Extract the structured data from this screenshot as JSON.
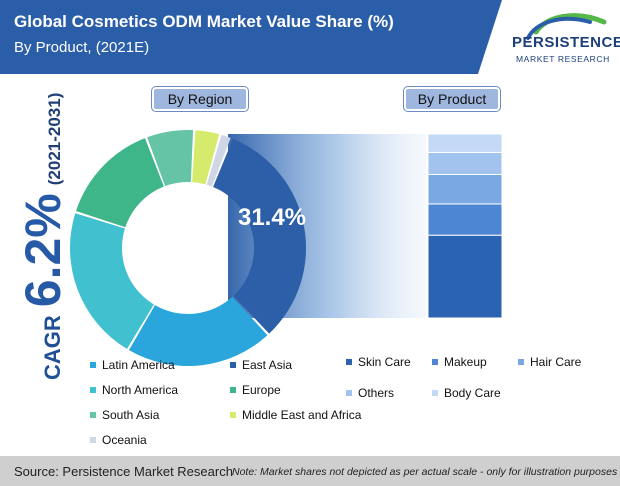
{
  "header": {
    "title": "Global Cosmetics ODM Market Value Share (%)",
    "subtitle": "By Product, (2021E)"
  },
  "logo": {
    "name": "PERSISTENCE",
    "tagline": "MARKET RESEARCH"
  },
  "labels": {
    "region": "By Region",
    "product": "By Product"
  },
  "cagr": {
    "label": "CAGR",
    "value": "6.2%",
    "period": "(2021-2031)"
  },
  "chart_data": [
    {
      "type": "pie",
      "subtype": "donut",
      "title": "By Region",
      "highlight_label": "31.4%",
      "series": [
        {
          "name": "East Asia",
          "value": 31.4,
          "color": "#2c5fa8"
        },
        {
          "name": "Latin America",
          "value": 20.0,
          "color": "#2aa6dd"
        },
        {
          "name": "North America",
          "value": 21.0,
          "color": "#41c0cf"
        },
        {
          "name": "Europe",
          "value": 14.0,
          "color": "#3fb58a"
        },
        {
          "name": "South Asia",
          "value": 6.5,
          "color": "#66c4a6"
        },
        {
          "name": "Middle East and Africa",
          "value": 3.5,
          "color": "#d6ea6c"
        },
        {
          "name": "Oceania",
          "value": 1.6,
          "color": "#cfd7e6"
        }
      ]
    },
    {
      "type": "bar",
      "subtype": "stacked",
      "title": "By Product",
      "series": [
        {
          "name": "Skin Care",
          "value": 45,
          "color": "#2b63b3"
        },
        {
          "name": "Makeup",
          "value": 17,
          "color": "#4d86d2"
        },
        {
          "name": "Hair Care",
          "value": 16,
          "color": "#7aa8e3"
        },
        {
          "name": "Others",
          "value": 12,
          "color": "#a3c3ef"
        },
        {
          "name": "Body Care",
          "value": 10,
          "color": "#c3d9f6"
        }
      ]
    }
  ],
  "legend_region": [
    {
      "label": "Latin America",
      "color": "#2aa6dd"
    },
    {
      "label": "East Asia",
      "color": "#2c5fa8"
    },
    {
      "label": "North America",
      "color": "#41c0cf"
    },
    {
      "label": "Europe",
      "color": "#3fb58a"
    },
    {
      "label": "South Asia",
      "color": "#66c4a6"
    },
    {
      "label": "Middle East and Africa",
      "color": "#d6ea6c"
    },
    {
      "label": "Oceania",
      "color": "#cfd7e6"
    }
  ],
  "legend_product": [
    {
      "label": "Skin Care",
      "color": "#2b63b3"
    },
    {
      "label": "Makeup",
      "color": "#4d86d2"
    },
    {
      "label": "Hair Care",
      "color": "#7aa8e3"
    },
    {
      "label": "Others",
      "color": "#a3c3ef"
    },
    {
      "label": "Body Care",
      "color": "#c3d9f6"
    }
  ],
  "footer": {
    "source": "Source: Persistence Market Research",
    "note": "Note: Market shares not depicted as per actual scale - only for illustration purposes"
  }
}
